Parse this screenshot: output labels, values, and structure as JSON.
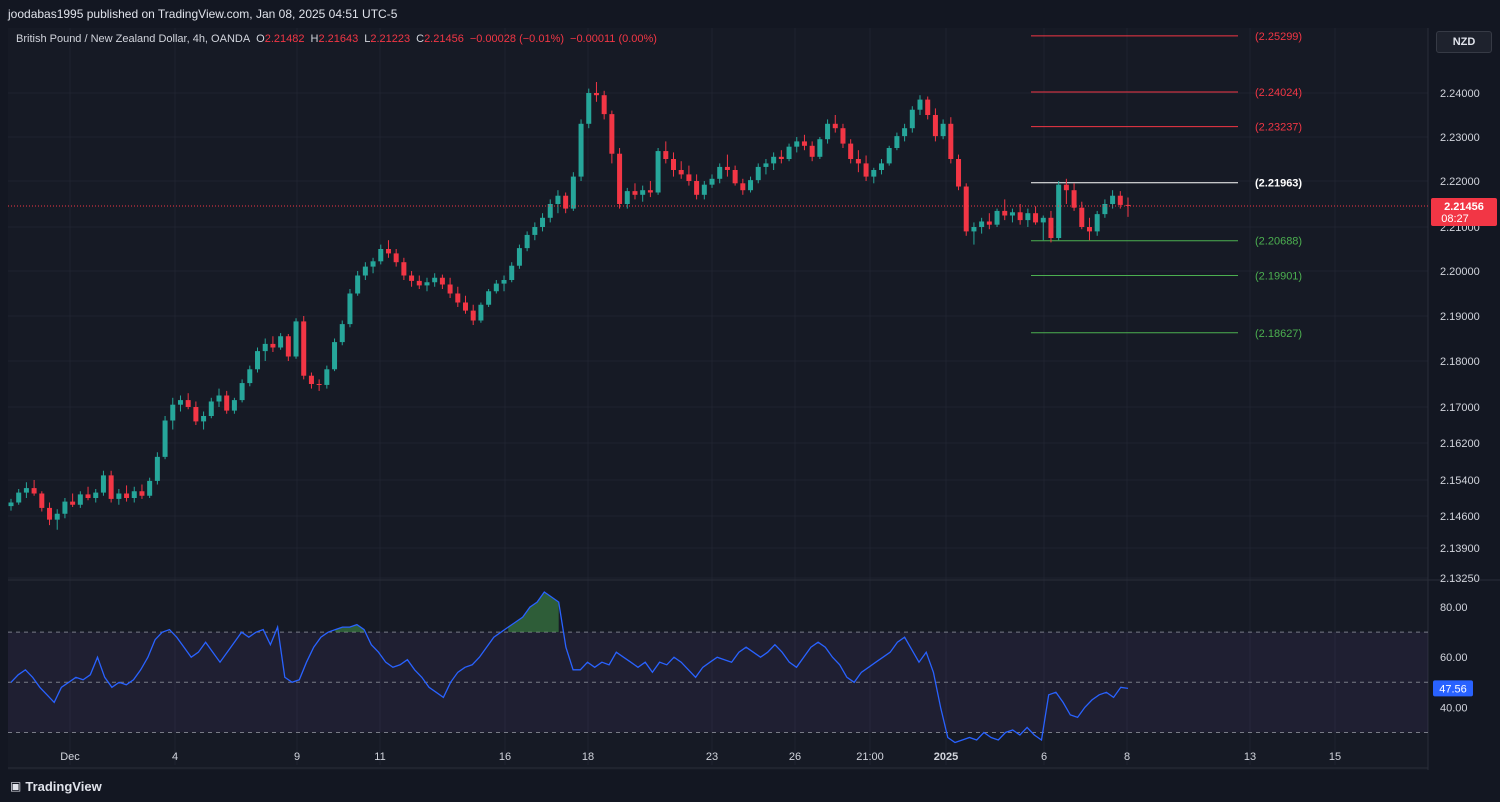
{
  "header": {
    "publisher": "joodabas1995 published on TradingView.com, Jan 08, 2025 04:51 UTC-5"
  },
  "legend": {
    "symbol": "British Pound / New Zealand Dollar, 4h, OANDA",
    "open_key": "O",
    "open": "2.21482",
    "high_key": "H",
    "high": "2.21643",
    "low_key": "L",
    "low": "2.21223",
    "close_key": "C",
    "close": "2.21456",
    "change": "−0.00028 (−0.01%)",
    "change2": "−0.00011 (0.00%)"
  },
  "currency": "NZD",
  "footer": {
    "brand": "TradingView",
    "logo": "tv-logo-icon"
  },
  "colors": {
    "up": "#26a69a",
    "down": "#f23645",
    "rsi": "#2962ff",
    "resistance": "#f23645",
    "support": "#4caf50",
    "pivot": "#ffffff"
  },
  "chart_data": [
    {
      "type": "candlestick",
      "price_axis_ticks": [
        "2.24000",
        "2.23000",
        "2.22000",
        "2.21000",
        "2.20000",
        "2.19000",
        "2.18000",
        "2.17000",
        "2.16200",
        "2.15400",
        "2.14600",
        "2.13900",
        "2.13250"
      ],
      "x_ticks": [
        "Dec",
        "4",
        "9",
        "11",
        "16",
        "18",
        "23",
        "26",
        "21:00",
        "2025",
        "6",
        "8",
        "13",
        "15"
      ],
      "last_price": "2.21456",
      "countdown": "08:27",
      "levels": [
        {
          "label": "(2.25299)",
          "value": 2.25299,
          "kind": "resistance"
        },
        {
          "label": "(2.24024)",
          "value": 2.24024,
          "kind": "resistance"
        },
        {
          "label": "(2.23237)",
          "value": 2.23237,
          "kind": "resistance"
        },
        {
          "label": "(2.21963)",
          "value": 2.21963,
          "kind": "pivot"
        },
        {
          "label": "(2.20688)",
          "value": 2.20688,
          "kind": "support"
        },
        {
          "label": "(2.19901)",
          "value": 2.19901,
          "kind": "support"
        },
        {
          "label": "(2.18627)",
          "value": 2.18627,
          "kind": "support"
        }
      ],
      "ohlc": [
        [
          2.1482,
          2.1498,
          2.1472,
          2.149
        ],
        [
          2.149,
          2.152,
          2.1485,
          2.1512
        ],
        [
          2.1512,
          2.1535,
          2.15,
          2.1522
        ],
        [
          2.1522,
          2.154,
          2.1505,
          2.151
        ],
        [
          2.151,
          2.1515,
          2.147,
          2.1478
        ],
        [
          2.1478,
          2.149,
          2.144,
          2.1452
        ],
        [
          2.1452,
          2.1475,
          2.143,
          2.1465
        ],
        [
          2.1465,
          2.15,
          2.1455,
          2.1492
        ],
        [
          2.1492,
          2.151,
          2.148,
          2.1485
        ],
        [
          2.1485,
          2.1515,
          2.1478,
          2.1508
        ],
        [
          2.1508,
          2.1525,
          2.1495,
          2.15
        ],
        [
          2.15,
          2.152,
          2.149,
          2.1512
        ],
        [
          2.1512,
          2.156,
          2.1505,
          2.155
        ],
        [
          2.155,
          2.156,
          2.149,
          2.1498
        ],
        [
          2.1498,
          2.152,
          2.1485,
          2.151
        ],
        [
          2.151,
          2.1528,
          2.1492,
          2.15
        ],
        [
          2.15,
          2.1525,
          2.149,
          2.1515
        ],
        [
          2.1515,
          2.153,
          2.1498,
          2.1505
        ],
        [
          2.1505,
          2.1545,
          2.15,
          2.1538
        ],
        [
          2.1538,
          2.16,
          2.153,
          2.159
        ],
        [
          2.159,
          2.168,
          2.1585,
          2.167
        ],
        [
          2.167,
          2.172,
          2.165,
          2.1705
        ],
        [
          2.1705,
          2.1725,
          2.169,
          2.1715
        ],
        [
          2.1715,
          2.173,
          2.1695,
          2.17
        ],
        [
          2.17,
          2.1712,
          2.166,
          2.1668
        ],
        [
          2.1668,
          2.169,
          2.165,
          2.168
        ],
        [
          2.168,
          2.172,
          2.1675,
          2.1712
        ],
        [
          2.1712,
          2.174,
          2.17,
          2.1725
        ],
        [
          2.1725,
          2.1735,
          2.1685,
          2.1692
        ],
        [
          2.1692,
          2.172,
          2.1685,
          2.1715
        ],
        [
          2.1715,
          2.176,
          2.171,
          2.1752
        ],
        [
          2.1752,
          2.179,
          2.1745,
          2.1782
        ],
        [
          2.1782,
          2.183,
          2.1775,
          2.1822
        ],
        [
          2.1822,
          2.185,
          2.18,
          2.1838
        ],
        [
          2.1838,
          2.1855,
          2.182,
          2.183
        ],
        [
          2.183,
          2.1862,
          2.1825,
          2.1855
        ],
        [
          2.1855,
          2.186,
          2.18,
          2.181
        ],
        [
          2.181,
          2.1895,
          2.1805,
          2.1888
        ],
        [
          2.1888,
          2.19,
          2.176,
          2.1768
        ],
        [
          2.1768,
          2.1775,
          2.174,
          2.175
        ],
        [
          2.175,
          2.176,
          2.1735,
          2.1748
        ],
        [
          2.1748,
          2.179,
          2.174,
          2.1782
        ],
        [
          2.1782,
          2.185,
          2.1778,
          2.1842
        ],
        [
          2.1842,
          2.189,
          2.1835,
          2.1882
        ],
        [
          2.1882,
          2.196,
          2.1875,
          2.195
        ],
        [
          2.195,
          2.2,
          2.1945,
          2.199
        ],
        [
          2.199,
          2.202,
          2.198,
          2.201
        ],
        [
          2.201,
          2.203,
          2.1995,
          2.2022
        ],
        [
          2.2022,
          2.206,
          2.2015,
          2.205
        ],
        [
          2.205,
          2.207,
          2.203,
          2.204
        ],
        [
          2.204,
          2.205,
          2.201,
          2.202
        ],
        [
          2.202,
          2.203,
          2.198,
          2.199
        ],
        [
          2.199,
          2.2,
          2.1965,
          2.1978
        ],
        [
          2.1978,
          2.199,
          2.196,
          2.1968
        ],
        [
          2.1968,
          2.1985,
          2.1955,
          2.1975
        ],
        [
          2.1975,
          2.1995,
          2.1965,
          2.1985
        ],
        [
          2.1985,
          2.1992,
          2.196,
          2.197
        ],
        [
          2.197,
          2.1985,
          2.194,
          2.195
        ],
        [
          2.195,
          2.1965,
          2.192,
          2.193
        ],
        [
          2.193,
          2.1945,
          2.1905,
          2.1912
        ],
        [
          2.1912,
          2.1925,
          2.188,
          2.189
        ],
        [
          2.189,
          2.193,
          2.1885,
          2.1925
        ],
        [
          2.1925,
          2.196,
          2.192,
          2.1955
        ],
        [
          2.1955,
          2.198,
          2.195,
          2.1972
        ],
        [
          2.1972,
          2.199,
          2.1955,
          2.198
        ],
        [
          2.198,
          2.202,
          2.1975,
          2.2012
        ],
        [
          2.2012,
          2.206,
          2.2005,
          2.2052
        ],
        [
          2.2052,
          2.209,
          2.2045,
          2.2082
        ],
        [
          2.2082,
          2.211,
          2.207,
          2.21
        ],
        [
          2.21,
          2.213,
          2.209,
          2.212
        ],
        [
          2.212,
          2.216,
          2.211,
          2.215
        ],
        [
          2.215,
          2.218,
          2.213,
          2.2168
        ],
        [
          2.2168,
          2.2175,
          2.213,
          2.214
        ],
        [
          2.214,
          2.222,
          2.2135,
          2.221
        ],
        [
          2.221,
          2.234,
          2.22,
          2.233
        ],
        [
          2.233,
          2.241,
          2.232,
          2.24
        ],
        [
          2.24,
          2.2425,
          2.238,
          2.2395
        ],
        [
          2.2395,
          2.2405,
          2.234,
          2.2352
        ],
        [
          2.2352,
          2.236,
          2.224,
          2.2262
        ],
        [
          2.2262,
          2.2275,
          2.214,
          2.215
        ],
        [
          2.215,
          2.2185,
          2.214,
          2.2178
        ],
        [
          2.2178,
          2.2195,
          2.216,
          2.217
        ],
        [
          2.217,
          2.219,
          2.2155,
          2.218
        ],
        [
          2.218,
          2.22,
          2.2165,
          2.2175
        ],
        [
          2.2175,
          2.2275,
          2.217,
          2.2268
        ],
        [
          2.2268,
          2.229,
          2.224,
          2.225
        ],
        [
          2.225,
          2.2265,
          2.221,
          2.2225
        ],
        [
          2.2225,
          2.2245,
          2.2205,
          2.2215
        ],
        [
          2.2215,
          2.2235,
          2.219,
          2.22
        ],
        [
          2.22,
          2.2215,
          2.216,
          2.217
        ],
        [
          2.217,
          2.22,
          2.216,
          2.2192
        ],
        [
          2.2192,
          2.2215,
          2.2185,
          2.2205
        ],
        [
          2.2205,
          2.224,
          2.2195,
          2.2232
        ],
        [
          2.2232,
          2.226,
          2.221,
          2.2225
        ],
        [
          2.2225,
          2.2235,
          2.219,
          2.2195
        ],
        [
          2.2195,
          2.2205,
          2.217,
          2.218
        ],
        [
          2.218,
          2.221,
          2.2175,
          2.2202
        ],
        [
          2.2202,
          2.224,
          2.2195,
          2.2232
        ],
        [
          2.2232,
          2.225,
          2.2215,
          2.224
        ],
        [
          2.224,
          2.2265,
          2.2225,
          2.2255
        ],
        [
          2.2255,
          2.227,
          2.224,
          2.225
        ],
        [
          2.225,
          2.2285,
          2.2245,
          2.2278
        ],
        [
          2.2278,
          2.23,
          2.2265,
          2.229
        ],
        [
          2.229,
          2.2305,
          2.227,
          2.228
        ],
        [
          2.228,
          2.229,
          2.2245,
          2.2255
        ],
        [
          2.2255,
          2.23,
          2.225,
          2.2295
        ],
        [
          2.2295,
          2.234,
          2.2285,
          2.233
        ],
        [
          2.233,
          2.235,
          2.231,
          2.232
        ],
        [
          2.232,
          2.233,
          2.2275,
          2.2285
        ],
        [
          2.2285,
          2.2295,
          2.224,
          2.225
        ],
        [
          2.225,
          2.227,
          2.222,
          2.224
        ],
        [
          2.224,
          2.2258,
          2.22,
          2.221
        ],
        [
          2.221,
          2.223,
          2.2195,
          2.2225
        ],
        [
          2.2225,
          2.225,
          2.2215,
          2.224
        ],
        [
          2.224,
          2.228,
          2.2235,
          2.2275
        ],
        [
          2.2275,
          2.231,
          2.227,
          2.2302
        ],
        [
          2.2302,
          2.233,
          2.229,
          2.232
        ],
        [
          2.232,
          2.237,
          2.231,
          2.2362
        ],
        [
          2.2362,
          2.2395,
          2.235,
          2.2385
        ],
        [
          2.2385,
          2.2392,
          2.234,
          2.235
        ],
        [
          2.235,
          2.2365,
          2.229,
          2.2302
        ],
        [
          2.2302,
          2.234,
          2.2295,
          2.233
        ],
        [
          2.233,
          2.2345,
          2.224,
          2.225
        ],
        [
          2.225,
          2.226,
          2.218,
          2.2188
        ],
        [
          2.2188,
          2.2195,
          2.208,
          2.209
        ],
        [
          2.209,
          2.211,
          2.206,
          2.21
        ],
        [
          2.21,
          2.212,
          2.2085,
          2.2112
        ],
        [
          2.2112,
          2.213,
          2.2095,
          2.2105
        ],
        [
          2.2105,
          2.214,
          2.21,
          2.2135
        ],
        [
          2.2135,
          2.216,
          2.2115,
          2.2125
        ],
        [
          2.2125,
          2.214,
          2.211,
          2.2132
        ],
        [
          2.2132,
          2.215,
          2.2105,
          2.2115
        ],
        [
          2.2115,
          2.214,
          2.21,
          2.213
        ],
        [
          2.213,
          2.2145,
          2.2105,
          2.211
        ],
        [
          2.211,
          2.2125,
          2.207,
          2.212
        ],
        [
          2.212,
          2.2135,
          2.2065,
          2.2075
        ],
        [
          2.2075,
          2.22,
          2.207,
          2.2192
        ],
        [
          2.2192,
          2.2205,
          2.215,
          2.218
        ],
        [
          2.218,
          2.2195,
          2.2135,
          2.2142
        ],
        [
          2.2142,
          2.2155,
          2.2095,
          2.21
        ],
        [
          2.21,
          2.212,
          2.207,
          2.209
        ],
        [
          2.209,
          2.2135,
          2.208,
          2.2128
        ],
        [
          2.2128,
          2.216,
          2.212,
          2.215
        ],
        [
          2.215,
          2.218,
          2.214,
          2.2168
        ],
        [
          2.2168,
          2.2178,
          2.214,
          2.2148
        ],
        [
          2.2148,
          2.2164,
          2.2122,
          2.2146
        ]
      ]
    },
    {
      "type": "line",
      "name": "RSI",
      "y_ticks": [
        "80.00",
        "60.00",
        "40.00"
      ],
      "overbought": 70,
      "midline": 50,
      "oversold": 30,
      "last_value": "47.56",
      "ylim": [
        25,
        90
      ],
      "values": [
        50,
        53,
        55,
        52,
        48,
        45,
        42,
        48,
        50,
        52,
        51,
        53,
        60,
        52,
        48,
        50,
        49,
        51,
        55,
        60,
        67,
        70,
        71,
        68,
        64,
        60,
        62,
        66,
        62,
        58,
        62,
        66,
        70,
        68,
        70,
        71,
        65,
        72,
        52,
        50,
        51,
        58,
        64,
        68,
        70,
        71,
        72,
        72,
        73,
        71,
        65,
        62,
        58,
        56,
        57,
        59,
        55,
        52,
        48,
        46,
        44,
        50,
        54,
        56,
        57,
        60,
        64,
        68,
        70,
        72,
        74,
        76,
        80,
        82,
        86,
        84,
        82,
        64,
        55,
        55,
        58,
        56,
        58,
        57,
        62,
        60,
        58,
        56,
        58,
        54,
        58,
        57,
        60,
        58,
        55,
        52,
        56,
        58,
        60,
        59,
        58,
        62,
        64,
        62,
        60,
        62,
        65,
        62,
        58,
        56,
        60,
        64,
        66,
        64,
        60,
        57,
        52,
        50,
        54,
        56,
        58,
        60,
        62,
        66,
        68,
        63,
        58,
        62,
        54,
        40,
        28,
        26,
        27,
        28,
        27,
        30,
        28,
        27,
        30,
        31,
        29,
        32,
        29,
        27,
        45,
        46,
        42,
        37,
        36,
        40,
        43,
        45,
        46,
        44,
        48,
        47.56
      ]
    }
  ]
}
